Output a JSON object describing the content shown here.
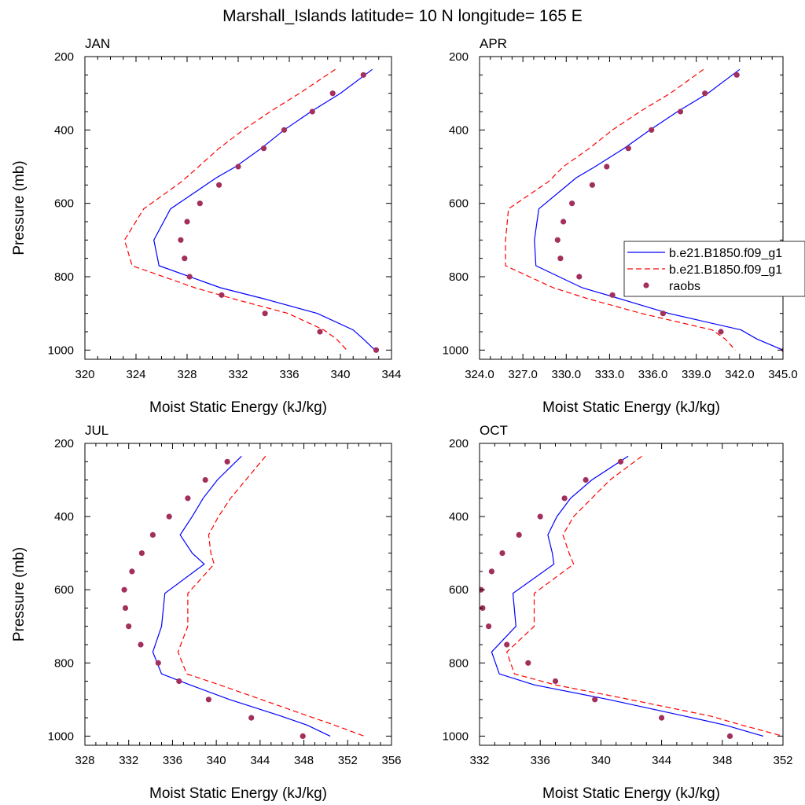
{
  "figure": {
    "title": "Marshall_Islands  latitude= 10 N longitude= 165 E"
  },
  "colors": {
    "model_1": "#0000ff",
    "model_2": "#ff0000",
    "obs": "#a3305c"
  },
  "chart_data": [
    {
      "type": "line",
      "panel_label": "JAN",
      "xlabel": "Moist Static Energy (kJ/kg)",
      "ylabel": "Pressure (mb)",
      "xlim": [
        320,
        344
      ],
      "ylim": [
        200,
        1025
      ],
      "y_reversed": true,
      "xticks": [
        "320",
        "324",
        "328",
        "332",
        "336",
        "340",
        "344"
      ],
      "yticks": [
        "200",
        "400",
        "600",
        "800",
        "1000"
      ],
      "series": [
        {
          "style": "solid-line",
          "pressure": [
            235,
            300,
            350,
            400,
            450,
            500,
            530,
            615,
            700,
            770,
            830,
            860,
            900,
            945,
            970,
            1000
          ],
          "mse": [
            342.5,
            340.0,
            337.7,
            335.6,
            333.8,
            331.8,
            330.3,
            326.7,
            325.4,
            325.8,
            330.6,
            334.0,
            338.2,
            341.0,
            341.8,
            342.7
          ]
        },
        {
          "style": "dashed-line",
          "pressure": [
            235,
            300,
            350,
            400,
            450,
            500,
            540,
            615,
            700,
            770,
            830,
            860,
            900,
            945,
            970,
            1000
          ],
          "mse": [
            339.6,
            336.8,
            334.5,
            332.4,
            330.5,
            328.9,
            327.6,
            324.6,
            323.1,
            323.7,
            328.6,
            331.6,
            335.9,
            338.7,
            339.7,
            340.5
          ]
        },
        {
          "style": "dots",
          "pressure": [
            250,
            300,
            350,
            400,
            450,
            500,
            550,
            600,
            650,
            700,
            750,
            800,
            850,
            900,
            950,
            1000
          ],
          "mse": [
            341.8,
            339.4,
            337.8,
            335.6,
            334.0,
            332.0,
            330.5,
            329.0,
            328.0,
            327.5,
            327.8,
            328.2,
            330.7,
            334.1,
            338.4,
            342.8
          ]
        }
      ]
    },
    {
      "type": "line",
      "panel_label": "APR",
      "xlabel": "Moist Static Energy (kJ/kg)",
      "ylabel": "",
      "xlim": [
        324,
        345
      ],
      "ylim": [
        200,
        1025
      ],
      "y_reversed": true,
      "xticks": [
        "324.0",
        "327.0",
        "330.0",
        "333.0",
        "336.0",
        "339.0",
        "342.0",
        "345.0"
      ],
      "yticks": [
        "200",
        "400",
        "600",
        "800",
        "1000"
      ],
      "series": [
        {
          "style": "solid-line",
          "pressure": [
            235,
            300,
            350,
            400,
            450,
            500,
            530,
            615,
            700,
            770,
            830,
            860,
            900,
            945,
            970,
            1000
          ],
          "mse": [
            342.0,
            339.8,
            337.7,
            335.8,
            334.0,
            332.0,
            330.7,
            328.1,
            327.8,
            327.9,
            331.1,
            333.7,
            337.1,
            342.1,
            343.2,
            345.0
          ]
        },
        {
          "style": "dashed-line",
          "pressure": [
            235,
            300,
            350,
            400,
            450,
            500,
            540,
            615,
            700,
            770,
            830,
            860,
            900,
            945,
            970,
            1000
          ],
          "mse": [
            339.5,
            337.2,
            335.1,
            333.2,
            331.6,
            329.8,
            328.8,
            326.0,
            325.8,
            325.8,
            329.1,
            331.5,
            335.2,
            340.1,
            341.0,
            341.7
          ]
        },
        {
          "style": "dots",
          "pressure": [
            250,
            300,
            350,
            400,
            450,
            500,
            550,
            600,
            650,
            700,
            750,
            800,
            850,
            900,
            950,
            1000
          ],
          "mse": [
            341.8,
            339.6,
            337.9,
            335.9,
            334.3,
            332.8,
            331.8,
            330.4,
            329.8,
            329.4,
            329.6,
            330.9,
            333.2,
            336.7,
            340.7,
            345.1
          ]
        }
      ]
    },
    {
      "type": "line",
      "panel_label": "JUL",
      "xlabel": "Moist Static Energy (kJ/kg)",
      "ylabel": "Pressure (mb)",
      "xlim": [
        328,
        356
      ],
      "ylim": [
        200,
        1025
      ],
      "y_reversed": true,
      "xticks": [
        "328",
        "332",
        "336",
        "340",
        "344",
        "348",
        "352",
        "356"
      ],
      "yticks": [
        "200",
        "400",
        "600",
        "800",
        "1000"
      ],
      "series": [
        {
          "style": "solid-line",
          "pressure": [
            235,
            300,
            350,
            400,
            450,
            500,
            530,
            610,
            700,
            770,
            830,
            860,
            900,
            945,
            970,
            1000
          ],
          "mse": [
            342.3,
            340.1,
            338.8,
            337.8,
            336.7,
            337.8,
            338.9,
            335.3,
            335.0,
            334.2,
            335.0,
            337.6,
            341.2,
            345.9,
            348.3,
            350.4
          ]
        },
        {
          "style": "dashed-line",
          "pressure": [
            235,
            300,
            350,
            400,
            450,
            500,
            530,
            610,
            700,
            770,
            830,
            860,
            900,
            945,
            970,
            1000
          ],
          "mse": [
            344.5,
            342.7,
            341.3,
            340.2,
            339.3,
            339.5,
            339.8,
            337.4,
            337.4,
            336.5,
            337.3,
            340.3,
            344.1,
            348.4,
            350.8,
            353.5
          ]
        },
        {
          "style": "dots",
          "pressure": [
            250,
            300,
            350,
            400,
            450,
            500,
            550,
            600,
            650,
            700,
            750,
            800,
            850,
            900,
            950,
            1000
          ],
          "mse": [
            341.0,
            339.0,
            337.4,
            335.7,
            334.2,
            333.2,
            332.3,
            331.6,
            331.7,
            332.0,
            333.1,
            334.7,
            336.6,
            339.3,
            343.2,
            347.9
          ]
        }
      ]
    },
    {
      "type": "line",
      "panel_label": "OCT",
      "xlabel": "Moist Static Energy (kJ/kg)",
      "ylabel": "",
      "xlim": [
        332,
        352
      ],
      "ylim": [
        200,
        1025
      ],
      "y_reversed": true,
      "xticks": [
        "332",
        "336",
        "340",
        "344",
        "348",
        "352"
      ],
      "yticks": [
        "200",
        "400",
        "600",
        "800",
        "1000"
      ],
      "series": [
        {
          "style": "solid-line",
          "pressure": [
            235,
            300,
            350,
            400,
            450,
            500,
            530,
            610,
            700,
            770,
            830,
            860,
            900,
            945,
            970,
            1000
          ],
          "mse": [
            341.8,
            339.4,
            338.0,
            337.1,
            336.5,
            336.8,
            336.9,
            334.2,
            334.4,
            332.8,
            333.3,
            335.6,
            340.5,
            345.5,
            348.2,
            350.7
          ]
        },
        {
          "style": "dashed-line",
          "pressure": [
            235,
            300,
            350,
            400,
            450,
            500,
            530,
            610,
            700,
            770,
            830,
            860,
            900,
            945,
            970,
            1000
          ],
          "mse": [
            342.7,
            340.6,
            339.4,
            338.2,
            337.5,
            337.9,
            338.2,
            335.6,
            335.6,
            333.8,
            334.3,
            337.0,
            341.9,
            347.2,
            349.3,
            352.0
          ]
        },
        {
          "style": "dots",
          "pressure": [
            250,
            300,
            350,
            400,
            450,
            500,
            550,
            600,
            650,
            700,
            750,
            800,
            850,
            900,
            950,
            1000
          ],
          "mse": [
            341.3,
            339.0,
            337.6,
            336.0,
            334.6,
            333.5,
            332.8,
            332.1,
            332.2,
            332.6,
            333.8,
            335.2,
            337.0,
            339.6,
            344.0,
            348.5
          ]
        }
      ]
    }
  ],
  "legend": {
    "placement": "right edge of APR panel",
    "entries": [
      {
        "label": "b.e21.B1850.f09_g1",
        "style": "solid-line"
      },
      {
        "label": "b.e21.B1850.f09_g1",
        "style": "dashed-line"
      },
      {
        "label": "raobs",
        "style": "dots"
      }
    ]
  }
}
